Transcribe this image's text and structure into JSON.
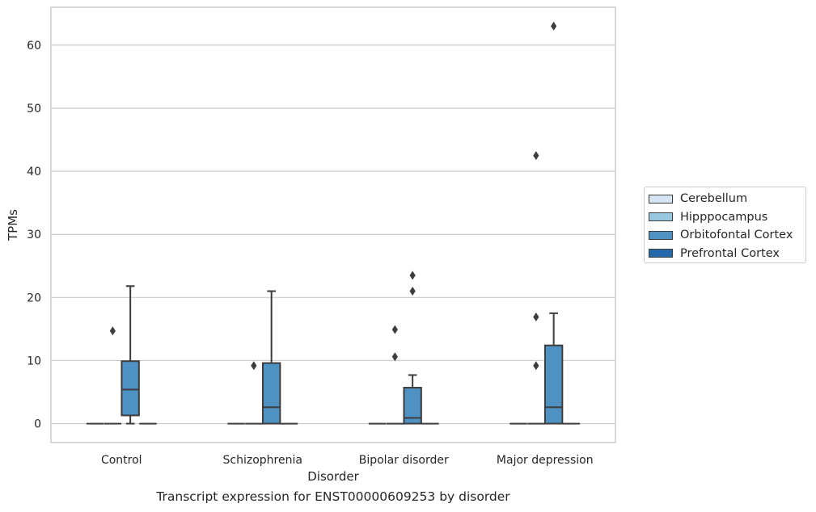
{
  "chart_data": {
    "type": "boxplot",
    "caption": "Transcript expression for ENST00000609253 by disorder",
    "xlabel": "Disorder",
    "ylabel": "TPMs",
    "ylim": [
      -3,
      66
    ],
    "yticks": [
      0,
      10,
      20,
      30,
      40,
      50,
      60
    ],
    "grid": true,
    "legend_position": "right",
    "categories": [
      "Control",
      "Schizophrenia",
      "Bipolar disorder",
      "Major depression"
    ],
    "series": [
      {
        "name": "Cerebellum",
        "color": "#d6e5f4",
        "boxes": [
          {
            "whislo": 0,
            "q1": 0,
            "med": 0,
            "q3": 0,
            "whishi": 0,
            "fliers": []
          },
          {
            "whislo": 0,
            "q1": 0,
            "med": 0,
            "q3": 0,
            "whishi": 0,
            "fliers": []
          },
          {
            "whislo": 0,
            "q1": 0,
            "med": 0,
            "q3": 0,
            "whishi": 0,
            "fliers": []
          },
          {
            "whislo": 0,
            "q1": 0,
            "med": 0,
            "q3": 0,
            "whishi": 0,
            "fliers": []
          }
        ]
      },
      {
        "name": "Hipppocampus",
        "color": "#9ac7e0",
        "boxes": [
          {
            "whislo": 0,
            "q1": 0,
            "med": 0,
            "q3": 0,
            "whishi": 0,
            "fliers": [
              14.7
            ]
          },
          {
            "whislo": 0,
            "q1": 0,
            "med": 0,
            "q3": 0,
            "whishi": 0,
            "fliers": [
              9.2
            ]
          },
          {
            "whislo": 0,
            "q1": 0,
            "med": 0,
            "q3": 0,
            "whishi": 0,
            "fliers": [
              10.6,
              14.9
            ]
          },
          {
            "whislo": 0,
            "q1": 0,
            "med": 0,
            "q3": 0,
            "whishi": 0,
            "fliers": [
              9.2,
              16.9,
              42.5
            ]
          }
        ]
      },
      {
        "name": "Orbitofontal Cortex",
        "color": "#4f91c3",
        "boxes": [
          {
            "whislo": 0,
            "q1": 1.3,
            "med": 5.4,
            "q3": 9.9,
            "whishi": 21.8,
            "fliers": []
          },
          {
            "whislo": 0,
            "q1": 0,
            "med": 2.6,
            "q3": 9.6,
            "whishi": 21.0,
            "fliers": []
          },
          {
            "whislo": 0,
            "q1": 0,
            "med": 0.9,
            "q3": 5.7,
            "whishi": 7.7,
            "fliers": [
              21.0,
              23.5
            ]
          },
          {
            "whislo": 0,
            "q1": 0,
            "med": 2.6,
            "q3": 12.4,
            "whishi": 17.5,
            "fliers": [
              63.0
            ]
          }
        ]
      },
      {
        "name": "Prefrontal Cortex",
        "color": "#2468aa",
        "boxes": [
          {
            "whislo": 0,
            "q1": 0,
            "med": 0,
            "q3": 0,
            "whishi": 0,
            "fliers": []
          },
          {
            "whislo": 0,
            "q1": 0,
            "med": 0,
            "q3": 0,
            "whishi": 0,
            "fliers": []
          },
          {
            "whislo": 0,
            "q1": 0,
            "med": 0,
            "q3": 0,
            "whishi": 0,
            "fliers": []
          },
          {
            "whislo": 0,
            "q1": 0,
            "med": 0,
            "q3": 0,
            "whishi": 0,
            "fliers": []
          }
        ]
      }
    ]
  }
}
